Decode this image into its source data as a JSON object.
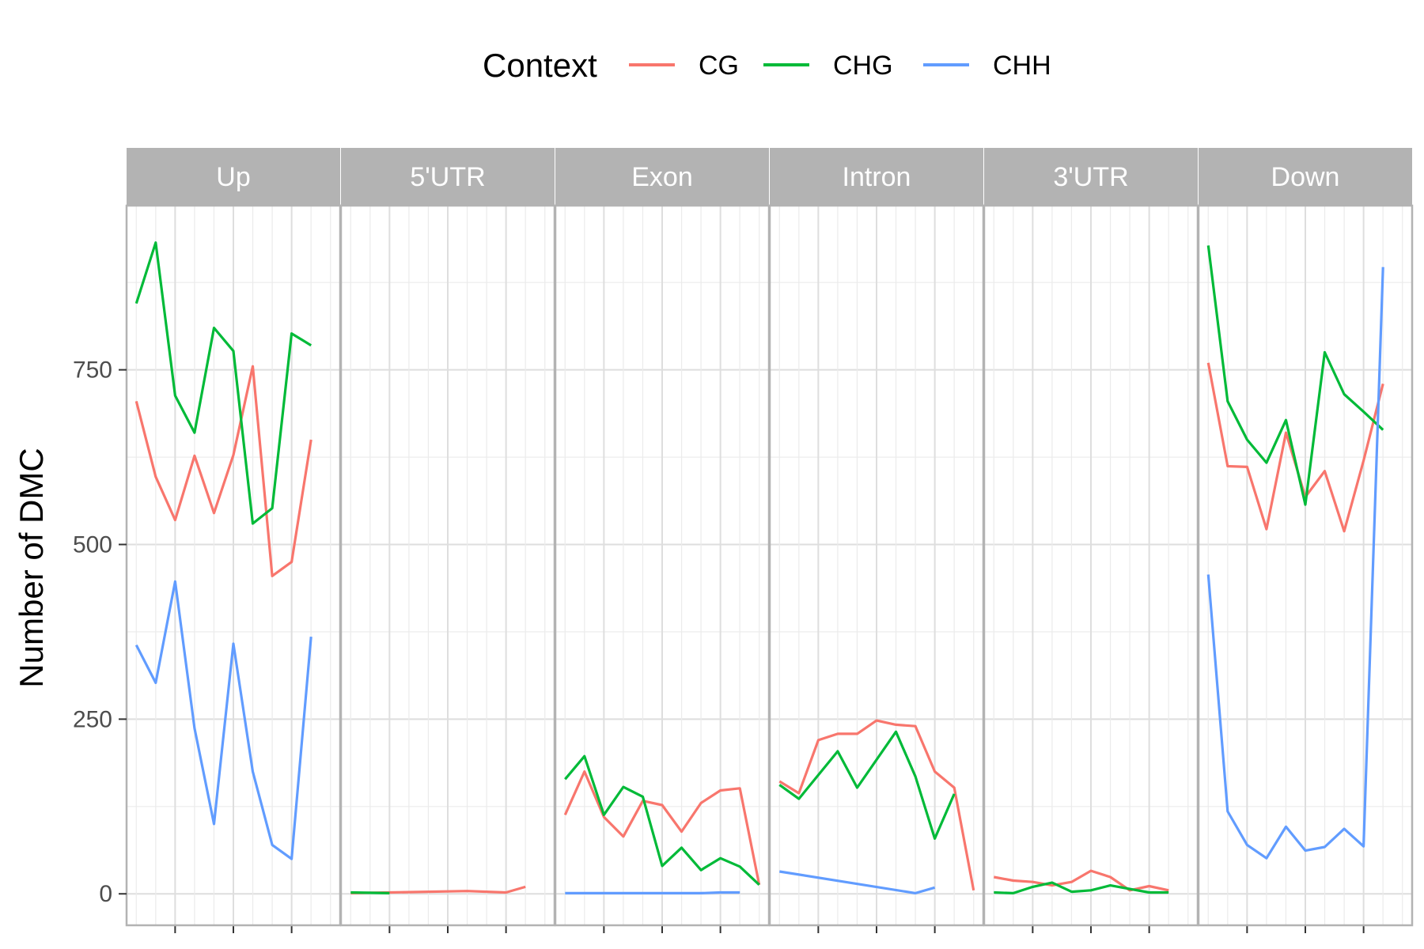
{
  "chart_data": {
    "type": "line",
    "title": "",
    "xlabel": "",
    "ylabel": "Number of DMC",
    "ylim": [
      -45,
      985
    ],
    "yticks": [
      0,
      250,
      500,
      750
    ],
    "grid": true,
    "legend": {
      "title": "Context",
      "position": "top",
      "items": [
        {
          "name": "CG",
          "color": "#F8766D"
        },
        {
          "name": "CHG",
          "color": "#00BA38"
        },
        {
          "name": "CHH",
          "color": "#619CFF"
        }
      ]
    },
    "facets": [
      {
        "label": "Up",
        "series": [
          {
            "name": "CG",
            "color": "#F8766D",
            "points": [
              [
                1,
                705
              ],
              [
                2,
                597
              ],
              [
                3,
                535
              ],
              [
                4,
                627
              ],
              [
                5,
                545
              ],
              [
                6,
                628
              ],
              [
                7,
                755
              ],
              [
                8,
                455
              ],
              [
                9,
                475
              ],
              [
                10,
                650
              ]
            ]
          },
          {
            "name": "CHG",
            "color": "#00BA38",
            "points": [
              [
                1,
                845
              ],
              [
                2,
                932
              ],
              [
                3,
                713
              ],
              [
                4,
                660
              ],
              [
                5,
                810
              ],
              [
                6,
                777
              ],
              [
                7,
                530
              ],
              [
                8,
                552
              ],
              [
                9,
                802
              ],
              [
                10,
                785
              ]
            ]
          },
          {
            "name": "CHH",
            "color": "#619CFF",
            "points": [
              [
                1,
                356
              ],
              [
                2,
                302
              ],
              [
                3,
                447
              ],
              [
                4,
                237
              ],
              [
                5,
                100
              ],
              [
                6,
                358
              ],
              [
                7,
                175
              ],
              [
                8,
                70
              ],
              [
                9,
                50
              ],
              [
                10,
                368
              ]
            ]
          }
        ]
      },
      {
        "label": "5'UTR",
        "series": [
          {
            "name": "CG",
            "color": "#F8766D",
            "points": [
              [
                1,
                1
              ],
              [
                3,
                2
              ],
              [
                7,
                4
              ],
              [
                9,
                2
              ],
              [
                10,
                10
              ]
            ]
          },
          {
            "name": "CHG",
            "color": "#00BA38",
            "points": [
              [
                1,
                2
              ],
              [
                3,
                1
              ]
            ]
          }
        ]
      },
      {
        "label": "Exon",
        "series": [
          {
            "name": "CG",
            "color": "#F8766D",
            "points": [
              [
                1,
                113
              ],
              [
                2,
                175
              ],
              [
                3,
                110
              ],
              [
                4,
                82
              ],
              [
                5,
                133
              ],
              [
                6,
                127
              ],
              [
                7,
                89
              ],
              [
                8,
                130
              ],
              [
                9,
                148
              ],
              [
                10,
                151
              ],
              [
                11,
                13
              ]
            ]
          },
          {
            "name": "CHG",
            "color": "#00BA38",
            "points": [
              [
                1,
                164
              ],
              [
                2,
                197
              ],
              [
                3,
                113
              ],
              [
                4,
                153
              ],
              [
                5,
                139
              ],
              [
                6,
                40
              ],
              [
                7,
                66
              ],
              [
                8,
                34
              ],
              [
                9,
                51
              ],
              [
                10,
                39
              ],
              [
                11,
                13
              ]
            ]
          },
          {
            "name": "CHH",
            "color": "#619CFF",
            "points": [
              [
                1,
                1
              ],
              [
                4,
                1
              ],
              [
                8,
                1
              ],
              [
                9,
                2
              ],
              [
                10,
                2
              ]
            ]
          }
        ]
      },
      {
        "label": "Intron",
        "series": [
          {
            "name": "CG",
            "color": "#F8766D",
            "points": [
              [
                1,
                161
              ],
              [
                2,
                144
              ],
              [
                3,
                220
              ],
              [
                4,
                229
              ],
              [
                5,
                229
              ],
              [
                6,
                248
              ],
              [
                7,
                242
              ],
              [
                8,
                240
              ],
              [
                9,
                175
              ],
              [
                10,
                152
              ],
              [
                11,
                5
              ]
            ]
          },
          {
            "name": "CHG",
            "color": "#00BA38",
            "points": [
              [
                1,
                156
              ],
              [
                2,
                136
              ],
              [
                4,
                204
              ],
              [
                5,
                152
              ],
              [
                7,
                232
              ],
              [
                8,
                168
              ],
              [
                9,
                79
              ],
              [
                10,
                143
              ]
            ]
          },
          {
            "name": "CHH",
            "color": "#619CFF",
            "points": [
              [
                1,
                32
              ],
              [
                8,
                1
              ],
              [
                9,
                9
              ]
            ]
          }
        ]
      },
      {
        "label": "3'UTR",
        "series": [
          {
            "name": "CG",
            "color": "#F8766D",
            "points": [
              [
                1,
                24
              ],
              [
                2,
                19
              ],
              [
                3,
                17
              ],
              [
                4,
                12
              ],
              [
                5,
                17
              ],
              [
                6,
                33
              ],
              [
                7,
                24
              ],
              [
                8,
                5
              ],
              [
                9,
                11
              ],
              [
                10,
                5
              ]
            ]
          },
          {
            "name": "CHG",
            "color": "#00BA38",
            "points": [
              [
                1,
                2
              ],
              [
                2,
                1
              ],
              [
                3,
                10
              ],
              [
                4,
                16
              ],
              [
                5,
                3
              ],
              [
                6,
                5
              ],
              [
                7,
                12
              ],
              [
                8,
                7
              ],
              [
                9,
                2
              ],
              [
                10,
                2
              ]
            ]
          }
        ]
      },
      {
        "label": "Down",
        "series": [
          {
            "name": "CG",
            "color": "#F8766D",
            "points": [
              [
                1,
                760
              ],
              [
                2,
                612
              ],
              [
                3,
                611
              ],
              [
                4,
                522
              ],
              [
                5,
                660
              ],
              [
                6,
                568
              ],
              [
                7,
                605
              ],
              [
                8,
                519
              ],
              [
                9,
                620
              ],
              [
                10,
                730
              ]
            ]
          },
          {
            "name": "CHG",
            "color": "#00BA38",
            "points": [
              [
                1,
                928
              ],
              [
                2,
                705
              ],
              [
                3,
                650
              ],
              [
                4,
                617
              ],
              [
                5,
                678
              ],
              [
                6,
                557
              ],
              [
                7,
                775
              ],
              [
                8,
                715
              ],
              [
                9,
                690
              ],
              [
                10,
                664
              ]
            ]
          },
          {
            "name": "CHH",
            "color": "#619CFF",
            "points": [
              [
                1,
                457
              ],
              [
                2,
                118
              ],
              [
                3,
                70
              ],
              [
                4,
                51
              ],
              [
                5,
                96
              ],
              [
                6,
                62
              ],
              [
                7,
                67
              ],
              [
                8,
                93
              ],
              [
                9,
                68
              ],
              [
                10,
                897
              ]
            ]
          }
        ]
      }
    ]
  }
}
